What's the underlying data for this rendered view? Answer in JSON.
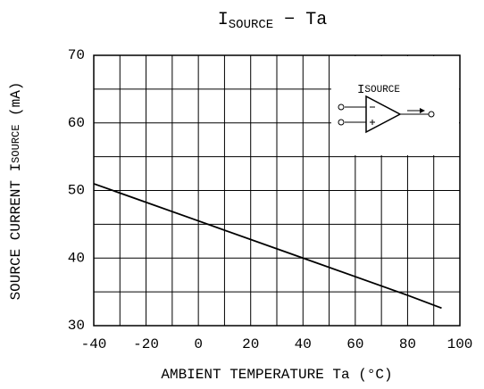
{
  "chart_data": {
    "type": "line",
    "title": [
      "I",
      "SOURCE",
      " − Ta"
    ],
    "y_label": [
      "SOURCE CURRENT I",
      "SOURCE",
      " (mA)"
    ],
    "x_label": "AMBIENT TEMPERATURE Ta (°C)",
    "annotation": [
      "I",
      "SOURCE"
    ],
    "x": [
      -40,
      0,
      40,
      80,
      93
    ],
    "series": [
      {
        "name": "ISOURCE",
        "color": "#000000",
        "values": [
          51,
          45.5,
          40,
          34.5,
          32.6
        ]
      }
    ],
    "xlim": [
      -40,
      100
    ],
    "xticks": [
      -40,
      -20,
      0,
      20,
      40,
      60,
      80,
      100
    ],
    "xminor": [
      -30,
      -10,
      10,
      30,
      50,
      70,
      90
    ],
    "ylim": [
      30,
      70
    ],
    "yticks": [
      30,
      40,
      50,
      60,
      70
    ],
    "yminor": [
      35,
      45,
      55,
      65
    ],
    "grid": true
  }
}
